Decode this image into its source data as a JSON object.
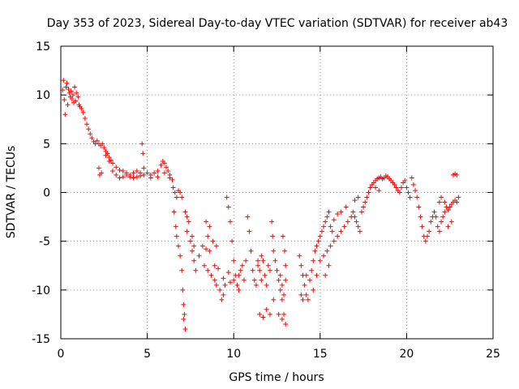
{
  "chart_data": {
    "type": "scatter",
    "title": "Day 353 of 2023, Sidereal Day-to-day VTEC variation (SDTVAR) for receiver ab43",
    "xlabel": "GPS time / hours",
    "ylabel": "SDTVAR / TECUs",
    "xlim": [
      0,
      25
    ],
    "ylim": [
      -15,
      15
    ],
    "xticks": [
      0,
      5,
      10,
      15,
      20,
      25
    ],
    "yticks": [
      -15,
      -10,
      -5,
      0,
      5,
      10,
      15
    ],
    "grid": true,
    "marker": "+",
    "color": "#ff0000",
    "series": [
      {
        "name": "SDTVAR",
        "points": [
          [
            0.1,
            10.5
          ],
          [
            0.15,
            11.5
          ],
          [
            0.2,
            9.5
          ],
          [
            0.25,
            8.0
          ],
          [
            0.3,
            10.8
          ],
          [
            0.35,
            11.2
          ],
          [
            0.4,
            9.0
          ],
          [
            0.45,
            10.6
          ],
          [
            0.5,
            10.2
          ],
          [
            0.55,
            9.8
          ],
          [
            0.6,
            10.4
          ],
          [
            0.65,
            9.6
          ],
          [
            0.7,
            10.0
          ],
          [
            0.75,
            9.2
          ],
          [
            0.8,
            10.8
          ],
          [
            0.85,
            9.4
          ],
          [
            0.9,
            10.2
          ],
          [
            1.0,
            9.8
          ],
          [
            1.05,
            9.0
          ],
          [
            1.1,
            8.8
          ],
          [
            1.2,
            8.6
          ],
          [
            1.3,
            8.2
          ],
          [
            1.4,
            7.6
          ],
          [
            1.5,
            7.0
          ],
          [
            1.6,
            6.5
          ],
          [
            1.7,
            6.0
          ],
          [
            1.8,
            5.6
          ],
          [
            1.9,
            5.2
          ],
          [
            2.0,
            5.0
          ],
          [
            2.1,
            5.3
          ],
          [
            2.2,
            5.0
          ],
          [
            2.3,
            4.8
          ],
          [
            2.4,
            5.0
          ],
          [
            2.5,
            4.6
          ],
          [
            2.6,
            4.2
          ],
          [
            2.7,
            4.0
          ],
          [
            2.8,
            3.6
          ],
          [
            2.9,
            3.3
          ],
          [
            3.0,
            3.0
          ],
          [
            3.2,
            2.6
          ],
          [
            3.4,
            2.3
          ],
          [
            3.6,
            2.2
          ],
          [
            3.8,
            2.0
          ],
          [
            4.0,
            1.8
          ],
          [
            4.2,
            2.0
          ],
          [
            4.4,
            2.2
          ],
          [
            4.6,
            2.0
          ],
          [
            4.7,
            5.0
          ],
          [
            4.75,
            4.0
          ],
          [
            4.8,
            2.5
          ],
          [
            5.0,
            2.0
          ],
          [
            5.2,
            1.8
          ],
          [
            5.4,
            2.0
          ],
          [
            5.6,
            2.2
          ],
          [
            5.8,
            2.8
          ],
          [
            5.9,
            3.2
          ],
          [
            6.0,
            3.0
          ],
          [
            6.1,
            2.6
          ],
          [
            6.2,
            2.2
          ],
          [
            6.3,
            1.8
          ],
          [
            2.2,
            2.5
          ],
          [
            2.25,
            1.8
          ],
          [
            2.35,
            2.0
          ],
          [
            2.6,
            3.8
          ],
          [
            2.8,
            3.2
          ],
          [
            3.0,
            2.2
          ],
          [
            3.2,
            1.8
          ],
          [
            3.4,
            1.5
          ],
          [
            3.6,
            1.6
          ],
          [
            3.8,
            1.8
          ],
          [
            4.0,
            1.6
          ],
          [
            4.2,
            1.5
          ],
          [
            4.4,
            1.6
          ],
          [
            4.6,
            1.7
          ],
          [
            4.8,
            1.8
          ],
          [
            5.2,
            1.5
          ],
          [
            5.6,
            1.6
          ],
          [
            6.0,
            2.0
          ],
          [
            6.3,
            1.5
          ],
          [
            6.45,
            1.3
          ],
          [
            6.5,
            0.5
          ],
          [
            6.6,
            0.0
          ],
          [
            6.7,
            -0.5
          ],
          [
            6.8,
            0.2
          ],
          [
            6.9,
            0.0
          ],
          [
            7.0,
            -0.5
          ],
          [
            6.55,
            -2.0
          ],
          [
            6.65,
            -3.5
          ],
          [
            6.7,
            -4.5
          ],
          [
            6.8,
            -5.5
          ],
          [
            6.9,
            -6.5
          ],
          [
            7.0,
            -8.0
          ],
          [
            7.05,
            -10.0
          ],
          [
            7.1,
            -11.5
          ],
          [
            7.15,
            -12.5
          ],
          [
            7.2,
            -14.0
          ],
          [
            7.1,
            -13.0
          ],
          [
            7.2,
            -2.0
          ],
          [
            7.3,
            -2.5
          ],
          [
            7.4,
            -3.0
          ],
          [
            7.3,
            -4.0
          ],
          [
            7.5,
            -5.0
          ],
          [
            7.6,
            -6.0
          ],
          [
            7.7,
            -7.0
          ],
          [
            7.8,
            -8.0
          ],
          [
            7.6,
            -4.5
          ],
          [
            7.7,
            -5.5
          ],
          [
            8.0,
            -6.5
          ],
          [
            8.2,
            -5.5
          ],
          [
            8.4,
            -5.8
          ],
          [
            8.5,
            -4.5
          ],
          [
            8.6,
            -6.0
          ],
          [
            8.8,
            -5.0
          ],
          [
            9.0,
            -5.5
          ],
          [
            8.3,
            -7.5
          ],
          [
            8.5,
            -8.0
          ],
          [
            8.7,
            -8.5
          ],
          [
            8.9,
            -9.0
          ],
          [
            9.0,
            -9.5
          ],
          [
            9.2,
            -10.0
          ],
          [
            9.3,
            -11.0
          ],
          [
            9.4,
            -10.5
          ],
          [
            9.5,
            -9.5
          ],
          [
            8.4,
            -3.0
          ],
          [
            8.6,
            -3.5
          ],
          [
            8.9,
            -7.5
          ],
          [
            9.1,
            -7.8
          ],
          [
            9.4,
            -8.8
          ],
          [
            9.6,
            -0.5
          ],
          [
            9.7,
            -1.5
          ],
          [
            9.8,
            -3.0
          ],
          [
            9.9,
            -5.0
          ],
          [
            10.0,
            -7.0
          ],
          [
            10.1,
            -8.5
          ],
          [
            10.2,
            -9.5
          ],
          [
            10.3,
            -10.0
          ],
          [
            10.4,
            -8.0
          ],
          [
            10.5,
            -7.5
          ],
          [
            10.6,
            -9.0
          ],
          [
            10.7,
            -7.0
          ],
          [
            10.8,
            -2.5
          ],
          [
            10.9,
            -4.0
          ],
          [
            11.0,
            -6.0
          ],
          [
            11.1,
            -8.0
          ],
          [
            11.2,
            -9.0
          ],
          [
            11.3,
            -9.5
          ],
          [
            11.4,
            -7.5
          ],
          [
            11.5,
            -8.0
          ],
          [
            11.6,
            -9.0
          ],
          [
            11.7,
            -7.0
          ],
          [
            11.8,
            -8.5
          ],
          [
            11.9,
            -9.5
          ],
          [
            12.0,
            -7.5
          ],
          [
            12.1,
            -8.0
          ],
          [
            12.2,
            -3.0
          ],
          [
            12.25,
            -4.5
          ],
          [
            12.3,
            -6.0
          ],
          [
            12.4,
            -7.0
          ],
          [
            12.5,
            -8.0
          ],
          [
            12.6,
            -9.0
          ],
          [
            12.7,
            -10.0
          ],
          [
            12.8,
            -11.0
          ],
          [
            12.9,
            -12.5
          ],
          [
            13.0,
            -13.5
          ],
          [
            12.8,
            -13.0
          ],
          [
            12.6,
            -12.5
          ],
          [
            12.3,
            -11.0
          ],
          [
            12.1,
            -12.5
          ],
          [
            11.9,
            -12.0
          ],
          [
            11.7,
            -12.8
          ],
          [
            11.5,
            -12.5
          ],
          [
            11.6,
            -6.5
          ],
          [
            11.4,
            -7.0
          ],
          [
            12.7,
            -8.5
          ],
          [
            12.8,
            -9.5
          ],
          [
            12.9,
            -10.5
          ],
          [
            13.0,
            -9.0
          ],
          [
            12.85,
            -4.5
          ],
          [
            12.95,
            -6.0
          ],
          [
            13.0,
            -7.5
          ],
          [
            13.8,
            -6.5
          ],
          [
            13.9,
            -7.5
          ],
          [
            14.0,
            -8.5
          ],
          [
            14.1,
            -9.5
          ],
          [
            14.2,
            -10.5
          ],
          [
            14.3,
            -11.0
          ],
          [
            14.4,
            -9.0
          ],
          [
            14.5,
            -8.0
          ],
          [
            14.6,
            -7.0
          ],
          [
            14.7,
            -6.0
          ],
          [
            14.8,
            -5.5
          ],
          [
            14.9,
            -5.0
          ],
          [
            15.0,
            -4.5
          ],
          [
            15.1,
            -4.0
          ],
          [
            15.2,
            -3.5
          ],
          [
            15.3,
            -3.0
          ],
          [
            15.4,
            -2.5
          ],
          [
            15.5,
            -2.0
          ],
          [
            15.6,
            -3.5
          ],
          [
            15.7,
            -4.0
          ],
          [
            15.0,
            -7.0
          ],
          [
            15.2,
            -6.5
          ],
          [
            15.4,
            -6.0
          ],
          [
            15.6,
            -5.5
          ],
          [
            15.8,
            -5.0
          ],
          [
            16.0,
            -4.5
          ],
          [
            16.2,
            -4.0
          ],
          [
            16.4,
            -3.5
          ],
          [
            16.6,
            -3.0
          ],
          [
            16.8,
            -2.5
          ],
          [
            16.9,
            -2.0
          ],
          [
            17.0,
            -2.5
          ],
          [
            17.1,
            -3.0
          ],
          [
            17.2,
            -3.5
          ],
          [
            17.3,
            -4.0
          ],
          [
            17.4,
            -2.0
          ],
          [
            17.5,
            -1.5
          ],
          [
            17.6,
            -1.0
          ],
          [
            17.7,
            -0.5
          ],
          [
            17.8,
            0.0
          ],
          [
            17.9,
            0.5
          ],
          [
            18.0,
            0.8
          ],
          [
            18.1,
            1.0
          ],
          [
            18.2,
            1.2
          ],
          [
            18.3,
            1.4
          ],
          [
            18.4,
            1.5
          ],
          [
            18.5,
            1.6
          ],
          [
            18.6,
            1.4
          ],
          [
            18.7,
            1.5
          ],
          [
            18.8,
            1.7
          ],
          [
            18.9,
            1.6
          ],
          [
            19.0,
            1.4
          ],
          [
            19.1,
            1.2
          ],
          [
            19.2,
            1.0
          ],
          [
            19.3,
            0.8
          ],
          [
            19.4,
            0.5
          ],
          [
            19.5,
            0.2
          ],
          [
            19.6,
            0.0
          ],
          [
            19.7,
            0.5
          ],
          [
            19.8,
            1.0
          ],
          [
            19.9,
            1.2
          ],
          [
            20.0,
            0.5
          ],
          [
            20.1,
            0.0
          ],
          [
            20.2,
            -0.5
          ],
          [
            20.3,
            1.5
          ],
          [
            20.4,
            0.8
          ],
          [
            20.5,
            0.2
          ],
          [
            20.6,
            -0.5
          ],
          [
            20.7,
            -1.5
          ],
          [
            20.8,
            -2.5
          ],
          [
            20.9,
            -3.5
          ],
          [
            21.0,
            -4.5
          ],
          [
            21.1,
            -5.0
          ],
          [
            21.2,
            -4.5
          ],
          [
            21.3,
            -4.0
          ],
          [
            21.4,
            -3.0
          ],
          [
            21.5,
            -2.5
          ],
          [
            21.6,
            -2.0
          ],
          [
            21.7,
            -2.5
          ],
          [
            21.8,
            -3.5
          ],
          [
            21.9,
            -4.0
          ],
          [
            22.0,
            -3.0
          ],
          [
            22.1,
            -2.5
          ],
          [
            22.2,
            -2.0
          ],
          [
            22.3,
            -1.5
          ],
          [
            22.4,
            -1.8
          ],
          [
            22.5,
            -1.5
          ],
          [
            22.6,
            -1.2
          ],
          [
            22.7,
            -1.0
          ],
          [
            22.8,
            -0.8
          ],
          [
            22.9,
            -1.0
          ],
          [
            23.0,
            -0.5
          ],
          [
            22.7,
            1.8
          ],
          [
            22.8,
            1.9
          ],
          [
            22.9,
            1.8
          ],
          [
            21.9,
            -1.0
          ],
          [
            22.0,
            -0.5
          ],
          [
            22.2,
            -1.0
          ],
          [
            22.4,
            -3.5
          ],
          [
            22.6,
            -3.0
          ],
          [
            18.2,
            0.5
          ],
          [
            18.4,
            0.2
          ],
          [
            17.2,
            -0.5
          ],
          [
            17.0,
            -0.8
          ],
          [
            16.5,
            -1.5
          ],
          [
            16.2,
            -2.0
          ],
          [
            16.0,
            -2.2
          ],
          [
            15.8,
            -2.8
          ],
          [
            14.2,
            -8.5
          ],
          [
            14.6,
            -10.0
          ],
          [
            14.0,
            -11.0
          ],
          [
            13.9,
            -10.5
          ],
          [
            15.5,
            -7.5
          ],
          [
            15.3,
            -8.5
          ],
          [
            14.8,
            -8.5
          ],
          [
            10.0,
            -9.0
          ],
          [
            10.3,
            -8.5
          ],
          [
            9.7,
            -8.2
          ],
          [
            9.8,
            -9.2
          ]
        ]
      }
    ]
  }
}
